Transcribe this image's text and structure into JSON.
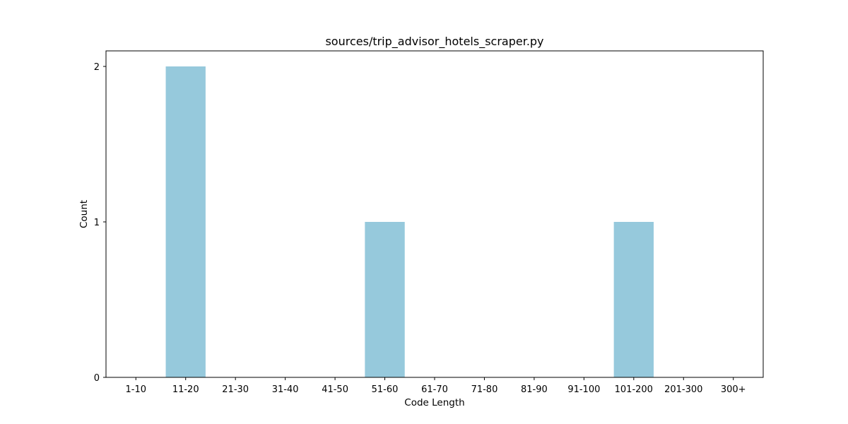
{
  "chart_data": {
    "type": "bar",
    "title": "sources/trip_advisor_hotels_scraper.py",
    "xlabel": "Code Length",
    "ylabel": "Count",
    "categories": [
      "1-10",
      "11-20",
      "21-30",
      "31-40",
      "41-50",
      "51-60",
      "61-70",
      "71-80",
      "81-90",
      "91-100",
      "101-200",
      "201-300",
      "300+"
    ],
    "values": [
      0,
      2,
      0,
      0,
      0,
      1,
      0,
      0,
      0,
      0,
      1,
      0,
      0
    ],
    "ylim": [
      0,
      2.1
    ],
    "yticks": [
      "0",
      "1",
      "2"
    ],
    "bar_color": "#96c9dc",
    "grid": false,
    "legend": "none"
  }
}
